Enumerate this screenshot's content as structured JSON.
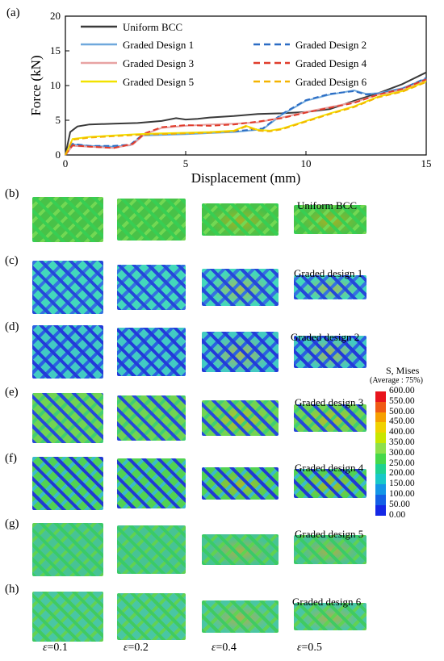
{
  "panel_labels": [
    "(a)",
    "(b)",
    "(c)",
    "(d)",
    "(e)",
    "(f)",
    "(g)",
    "(h)"
  ],
  "chart_data": {
    "type": "line",
    "title": "",
    "xlabel": "Displacement (mm)",
    "ylabel": "Force (kN)",
    "xlim": [
      0,
      15
    ],
    "ylim": [
      0,
      20
    ],
    "x_ticks": [
      0,
      5,
      10,
      15
    ],
    "y_ticks": [
      0,
      5,
      10,
      15,
      20
    ],
    "grid": false,
    "legend_position": "top-left",
    "series": [
      {
        "name": "Uniform BCC",
        "color": "#3a3a3a",
        "dash": "solid",
        "x": [
          0,
          0.2,
          0.5,
          1,
          2,
          3,
          4,
          4.6,
          5,
          5.5,
          6,
          7,
          8,
          9,
          10,
          11,
          12,
          13,
          14,
          15
        ],
        "y": [
          0,
          3.3,
          4.1,
          4.4,
          4.5,
          4.6,
          4.9,
          5.3,
          5.1,
          5.2,
          5.4,
          5.6,
          5.9,
          6.0,
          6.2,
          6.6,
          7.8,
          8.9,
          10.2,
          11.9
        ]
      },
      {
        "name": "Graded Design 1",
        "color": "#6fa8dc",
        "dash": "solid",
        "x": [
          0,
          0.3,
          1,
          2,
          2.7,
          3.2,
          5,
          7,
          8.2,
          9,
          10,
          11,
          12,
          12.5,
          13,
          14,
          15
        ],
        "y": [
          0,
          1.5,
          1.3,
          1.2,
          1.4,
          2.8,
          3.0,
          3.3,
          3.7,
          5.8,
          7.8,
          8.7,
          9.3,
          8.8,
          8.9,
          9.6,
          11.0
        ]
      },
      {
        "name": "Graded Design 2",
        "color": "#2b6cc4",
        "dash": "dashed",
        "x": [
          0,
          0.3,
          1,
          2,
          2.7,
          3.2,
          5,
          7,
          8.2,
          9,
          10,
          11,
          12,
          12.5,
          13,
          14,
          15
        ],
        "y": [
          0,
          1.6,
          1.3,
          1.3,
          1.5,
          2.9,
          3.1,
          3.4,
          3.8,
          5.9,
          7.9,
          8.8,
          9.2,
          8.7,
          8.8,
          9.5,
          11.1
        ]
      },
      {
        "name": "Graded Design 3",
        "color": "#e8a3a3",
        "dash": "solid",
        "x": [
          0,
          0.3,
          1,
          2,
          2.8,
          3.3,
          4,
          5,
          6,
          7,
          8,
          9,
          10,
          11,
          12,
          13,
          14,
          15
        ],
        "y": [
          0,
          1.3,
          1.2,
          1.0,
          1.5,
          3.0,
          3.9,
          4.2,
          4.4,
          4.5,
          4.7,
          5.4,
          6.2,
          6.9,
          7.6,
          8.7,
          9.4,
          10.8
        ]
      },
      {
        "name": "Graded Design 4",
        "color": "#e03c2b",
        "dash": "dashed",
        "x": [
          0,
          0.3,
          1,
          2,
          2.8,
          3.3,
          4,
          5,
          6,
          7,
          8,
          9,
          10,
          11,
          12,
          13,
          14,
          15
        ],
        "y": [
          0,
          1.4,
          1.2,
          1.0,
          1.6,
          3.1,
          4.0,
          4.3,
          4.2,
          4.4,
          4.8,
          5.3,
          6.1,
          6.8,
          7.5,
          8.7,
          9.5,
          10.9
        ]
      },
      {
        "name": "Graded Design 5",
        "color": "#f2e200",
        "dash": "solid",
        "x": [
          0,
          0.3,
          1,
          2,
          3,
          4,
          5,
          6,
          7,
          7.5,
          8,
          8.5,
          9,
          10,
          11,
          12,
          13,
          14,
          15
        ],
        "y": [
          0,
          2.3,
          2.6,
          2.8,
          3.0,
          3.1,
          3.2,
          3.3,
          3.5,
          4.2,
          3.6,
          3.5,
          3.8,
          4.9,
          6.0,
          7.0,
          8.4,
          9.2,
          10.6
        ]
      },
      {
        "name": "Graded Design 6",
        "color": "#f4b400",
        "dash": "dashed",
        "x": [
          0,
          0.3,
          1,
          2,
          3,
          4,
          5,
          6,
          7,
          7.5,
          8,
          8.5,
          9,
          10,
          11,
          12,
          13,
          14,
          15
        ],
        "y": [
          0,
          2.2,
          2.5,
          2.7,
          2.9,
          3.0,
          3.1,
          3.2,
          3.4,
          4.1,
          3.5,
          3.4,
          3.7,
          4.8,
          5.9,
          6.9,
          8.3,
          9.1,
          10.5
        ]
      }
    ]
  },
  "design_labels": [
    "Uniform BCC",
    "Graded design 1",
    "Graded design 2",
    "Graded design 3",
    "Graded design 4",
    "Graded design 5",
    "Graded design 6"
  ],
  "strain_symbol": "ε",
  "strain_values": [
    "=0.1",
    "=0.2",
    "=0.4",
    "=0.5"
  ],
  "colorbar": {
    "title": "S, Mises",
    "subtitle": "(Average : 75%)",
    "levels": [
      "600.00",
      "550.00",
      "500.00",
      "450.00",
      "400.00",
      "350.00",
      "300.00",
      "250.00",
      "200.00",
      "150.00",
      "100.00",
      "50.00",
      "0.00"
    ],
    "colors": [
      "#e8141c",
      "#f05a14",
      "#f6a000",
      "#f0d200",
      "#c8e600",
      "#8ee04a",
      "#46d84a",
      "#1ed290",
      "#18c8c8",
      "#1496e6",
      "#1460e6",
      "#1428e6"
    ]
  }
}
